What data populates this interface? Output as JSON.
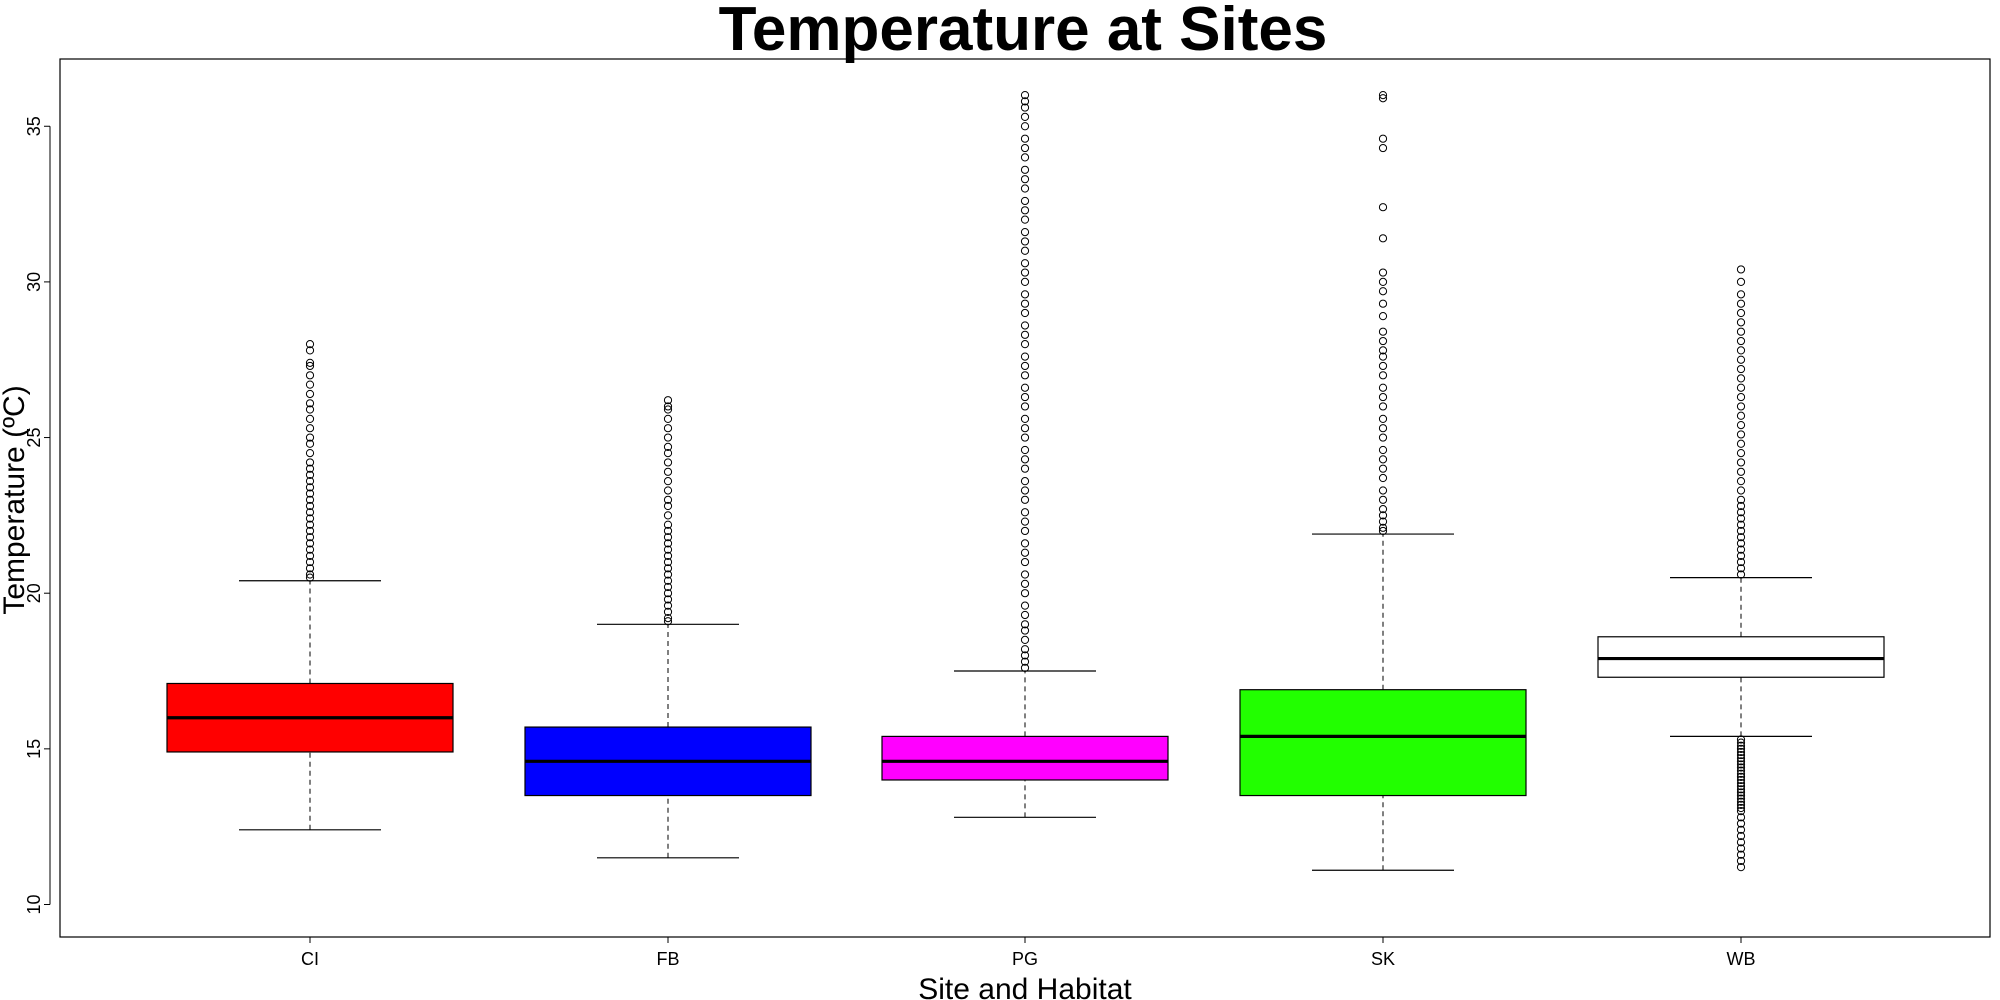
{
  "chart_data": {
    "type": "boxplot",
    "title": "Temperature at Sites",
    "xlabel": "Site and Habitat",
    "ylabel": "Temperature (ºC)",
    "ylim": [
      9,
      37
    ],
    "yticks": [
      10,
      15,
      20,
      25,
      30,
      35
    ],
    "grid": false,
    "categories": [
      "CI",
      "FB",
      "PG",
      "SK",
      "WB"
    ],
    "boxes": [
      {
        "category": "CI",
        "color": "#ff0000",
        "whisker_low": 12.4,
        "q1": 14.9,
        "median": 16.0,
        "q3": 17.1,
        "whisker_high": 20.4,
        "outliers_high": [
          20.5,
          20.6,
          20.8,
          21.0,
          21.2,
          21.4,
          21.6,
          21.8,
          22.0,
          22.2,
          22.4,
          22.6,
          22.8,
          23.0,
          23.2,
          23.4,
          23.6,
          23.8,
          24.0,
          24.2,
          24.5,
          24.8,
          25.0,
          25.3,
          25.6,
          25.9,
          26.1,
          26.4,
          26.7,
          27.0,
          27.3,
          27.4,
          27.8,
          28.0
        ],
        "outliers_low": []
      },
      {
        "category": "FB",
        "color": "#0000ff",
        "whisker_low": 11.5,
        "q1": 13.5,
        "median": 14.6,
        "q3": 15.7,
        "whisker_high": 19.0,
        "outliers_high": [
          19.1,
          19.2,
          19.4,
          19.6,
          19.8,
          20.0,
          20.2,
          20.4,
          20.6,
          20.8,
          21.0,
          21.2,
          21.4,
          21.6,
          21.8,
          22.0,
          22.2,
          22.5,
          22.8,
          23.0,
          23.3,
          23.6,
          23.9,
          24.2,
          24.5,
          24.7,
          25.0,
          25.3,
          25.6,
          25.9,
          26.0,
          26.2
        ],
        "outliers_low": []
      },
      {
        "category": "PG",
        "color": "#ff00ff",
        "whisker_low": 12.8,
        "q1": 14.0,
        "median": 14.6,
        "q3": 15.4,
        "whisker_high": 17.5,
        "outliers_high": [
          17.6,
          17.8,
          18.0,
          18.2,
          18.5,
          18.8,
          19.0,
          19.3,
          19.6,
          20.0,
          20.3,
          20.6,
          21.0,
          21.3,
          21.6,
          22.0,
          22.3,
          22.6,
          23.0,
          23.3,
          23.6,
          24.0,
          24.3,
          24.6,
          25.0,
          25.3,
          25.6,
          26.0,
          26.3,
          26.6,
          27.0,
          27.3,
          27.6,
          28.0,
          28.3,
          28.6,
          29.0,
          29.3,
          29.6,
          30.0,
          30.3,
          30.6,
          31.0,
          31.3,
          31.6,
          32.0,
          32.3,
          32.6,
          33.0,
          33.3,
          33.6,
          34.0,
          34.3,
          34.6,
          35.0,
          35.3,
          35.6,
          35.8,
          36.0
        ],
        "outliers_low": []
      },
      {
        "category": "SK",
        "color": "#22ff00",
        "whisker_low": 11.1,
        "q1": 13.5,
        "median": 15.4,
        "q3": 16.9,
        "whisker_high": 21.9,
        "outliers_high": [
          22.0,
          22.1,
          22.3,
          22.5,
          22.7,
          23.0,
          23.3,
          23.7,
          24.0,
          24.3,
          24.6,
          25.0,
          25.3,
          25.6,
          26.0,
          26.3,
          26.6,
          27.0,
          27.3,
          27.6,
          27.8,
          28.1,
          28.4,
          28.9,
          29.3,
          29.7,
          30.0,
          30.3,
          31.4,
          32.4,
          34.3,
          34.6,
          35.9,
          36.0
        ],
        "outliers_low": []
      },
      {
        "category": "WB",
        "color": "#ffffff",
        "whisker_low": 15.4,
        "q1": 17.3,
        "median": 17.9,
        "q3": 18.6,
        "whisker_high": 20.5,
        "outliers_high": [
          20.6,
          20.8,
          21.0,
          21.2,
          21.4,
          21.6,
          21.8,
          22.0,
          22.2,
          22.4,
          22.6,
          22.8,
          23.0,
          23.3,
          23.6,
          23.9,
          24.2,
          24.5,
          24.8,
          25.1,
          25.4,
          25.7,
          26.0,
          26.3,
          26.6,
          26.9,
          27.2,
          27.5,
          27.8,
          28.1,
          28.4,
          28.7,
          29.0,
          29.3,
          29.6,
          30.0,
          30.4
        ],
        "outliers_low": [
          15.3,
          15.2,
          15.1,
          15.0,
          14.9,
          14.8,
          14.7,
          14.6,
          14.5,
          14.4,
          14.3,
          14.2,
          14.1,
          14.0,
          13.9,
          13.8,
          13.7,
          13.6,
          13.5,
          13.4,
          13.3,
          13.2,
          13.1,
          13.0,
          12.8,
          12.6,
          12.4,
          12.2,
          12.0,
          11.8,
          11.6,
          11.4,
          11.2
        ]
      }
    ]
  }
}
